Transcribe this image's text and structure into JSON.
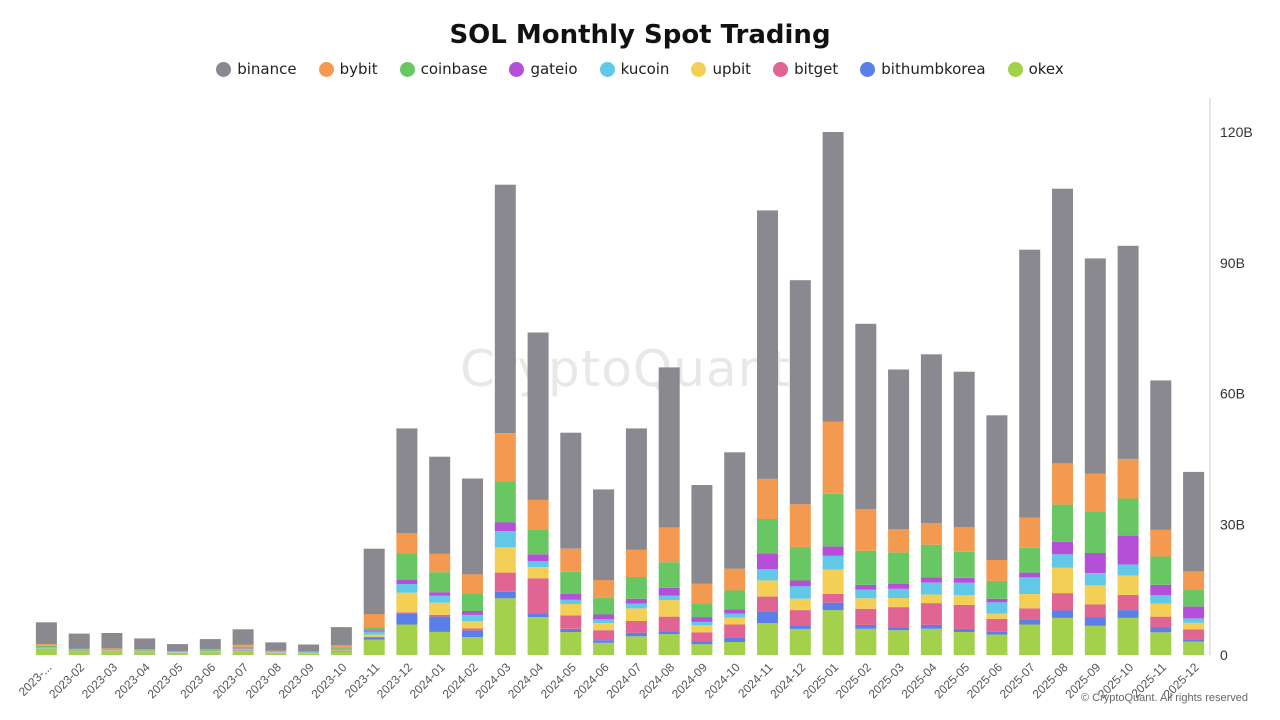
{
  "chart_data": {
    "type": "bar",
    "stacked": true,
    "title": "SOL Monthly Spot Trading",
    "categories": [
      "2023-...",
      "2023-02",
      "2023-03",
      "2023-04",
      "2023-05",
      "2023-06",
      "2023-07",
      "2023-08",
      "2023-09",
      "2023-10",
      "2023-11",
      "2023-12",
      "2024-01",
      "2024-02",
      "2024-03",
      "2024-04",
      "2024-05",
      "2024-06",
      "2024-07",
      "2024-08",
      "2024-09",
      "2024-10",
      "2024-11",
      "2024-12",
      "2025-01",
      "2025-02",
      "2025-03",
      "2025-04",
      "2025-05",
      "2025-06",
      "2025-07",
      "2025-08",
      "2025-09",
      "2025-10",
      "2025-11",
      "2025-12"
    ],
    "y_ticks": [
      "0",
      "30B",
      "60B",
      "90B",
      "120B"
    ],
    "y_tick_values": [
      0,
      30,
      60,
      90,
      120
    ],
    "ylim": [
      0,
      126
    ],
    "unit": "B",
    "series": [
      {
        "name": "okex",
        "color": "#a3d14b",
        "values": [
          1.2,
          0.7,
          0.8,
          0.6,
          0.4,
          0.6,
          0.9,
          0.4,
          0.3,
          0.8,
          3.5,
          7,
          5.3,
          4.1,
          13,
          8.7,
          5.3,
          2.8,
          4.3,
          4.8,
          2.5,
          3,
          7.3,
          6,
          10.3,
          6,
          5.7,
          6,
          5.3,
          4.7,
          7,
          8.5,
          6.7,
          8.5,
          5.2,
          3.1
        ]
      },
      {
        "name": "bithumbkorea",
        "color": "#5b7fe8",
        "values": [
          0.1,
          0.05,
          0.05,
          0.05,
          0.05,
          0.05,
          0.1,
          0.05,
          0.05,
          0.1,
          0.4,
          2.5,
          3.5,
          1.5,
          1.5,
          0.7,
          0.7,
          0.6,
          0.8,
          0.6,
          0.7,
          1,
          2.7,
          0.8,
          1.7,
          0.9,
          0.7,
          0.9,
          0.7,
          0.6,
          1.2,
          1.7,
          1.9,
          1.8,
          1.1,
          0.5
        ]
      },
      {
        "name": "bitget",
        "color": "#e06592",
        "values": [
          0.1,
          0.05,
          0.05,
          0.05,
          0.05,
          0.05,
          0.1,
          0.05,
          0.05,
          0.1,
          0.3,
          0.3,
          0.4,
          0.5,
          4.4,
          8.2,
          3.1,
          2.3,
          2.7,
          3.4,
          2,
          3,
          3.4,
          3.5,
          2,
          3.7,
          4.6,
          5,
          5.5,
          3,
          2.5,
          4,
          3,
          3.5,
          2.5,
          2.3
        ]
      },
      {
        "name": "upbit",
        "color": "#f3cf55",
        "values": [
          0.1,
          0.05,
          0.1,
          0.05,
          0.05,
          0.1,
          0.1,
          0.05,
          0.05,
          0.1,
          0.5,
          4.5,
          2.8,
          1.7,
          5.8,
          2.6,
          2.6,
          1.6,
          2.9,
          3.8,
          1.6,
          1.6,
          3.7,
          2.6,
          5.6,
          2.4,
          2.1,
          2,
          2.2,
          1.2,
          3.3,
          5.8,
          4.4,
          4.4,
          3,
          1.5
        ]
      },
      {
        "name": "kucoin",
        "color": "#62c8e8",
        "values": [
          0.2,
          0.1,
          0.1,
          0.1,
          0.1,
          0.1,
          0.2,
          0.1,
          0.1,
          0.2,
          0.7,
          2,
          1.6,
          1.4,
          3.7,
          1.3,
          1,
          0.9,
          1.1,
          1,
          0.8,
          0.9,
          2.6,
          2.9,
          3.2,
          2,
          2.1,
          2.7,
          2.9,
          2.6,
          3.8,
          3.1,
          2.8,
          2.6,
          1.9,
          1
        ]
      },
      {
        "name": "gateio",
        "color": "#b64fd8",
        "values": [
          0.1,
          0.05,
          0.05,
          0.05,
          0.05,
          0.05,
          0.1,
          0.05,
          0.05,
          0.1,
          0.3,
          1,
          0.8,
          0.9,
          2,
          1.6,
          1.3,
          1.1,
          1.1,
          1.8,
          1.1,
          1,
          3.6,
          1.3,
          2.1,
          1.1,
          1.1,
          1.2,
          1.1,
          0.8,
          1.1,
          2.9,
          4.6,
          6.6,
          2.4,
          2.7
        ]
      },
      {
        "name": "coinbase",
        "color": "#69c763",
        "values": [
          0.3,
          0.2,
          0.2,
          0.2,
          0.1,
          0.2,
          0.4,
          0.1,
          0.1,
          0.4,
          0.7,
          6,
          4.6,
          4.1,
          9.5,
          5.7,
          5.1,
          3.8,
          5,
          5.9,
          3.2,
          4.3,
          7.9,
          7.7,
          12.1,
          7.8,
          7.2,
          7.5,
          6,
          4.1,
          5.7,
          8.5,
          9.5,
          8.5,
          6.5,
          4
        ]
      },
      {
        "name": "bybit",
        "color": "#f39a50",
        "values": [
          0.4,
          0.2,
          0.2,
          0.2,
          0.1,
          0.2,
          0.5,
          0.2,
          0.1,
          0.5,
          3,
          4.7,
          4.2,
          4.3,
          11,
          6.8,
          5.3,
          4.1,
          6.3,
          8,
          4.5,
          5,
          9.2,
          9.8,
          16.5,
          9.6,
          5.4,
          5,
          5.6,
          4.8,
          6.9,
          9.5,
          8.7,
          9.1,
          6.1,
          4
        ]
      },
      {
        "name": "binance",
        "color": "#8a8990",
        "values": [
          5,
          3.5,
          3.5,
          2.5,
          1.6,
          2.3,
          3.5,
          1.9,
          1.6,
          4.1,
          15,
          24,
          22.3,
          22,
          57,
          38.4,
          26.6,
          20.8,
          27.8,
          36.7,
          22.6,
          26.7,
          61.6,
          51.4,
          66.5,
          42.5,
          36.6,
          38.7,
          35.7,
          33.2,
          61.5,
          63,
          49.4,
          48.9,
          34.3,
          22.9
        ]
      }
    ]
  },
  "watermark": "CryptoQuant",
  "copyright": "© CryptoQuant. All rights reserved"
}
